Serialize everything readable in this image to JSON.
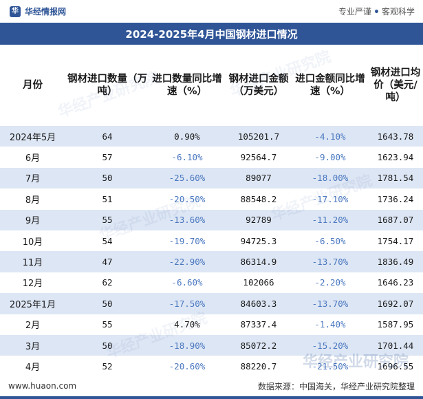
{
  "topbar": {
    "brand": "华经情报网",
    "slogan_left": "专业严谨",
    "slogan_right": "客观科学"
  },
  "title": "2024-2025年4月中国钢材进口情况",
  "columns": [
    "月份",
    "钢材进口数量（万吨）",
    "进口数量同比增速（%）",
    "钢材进口金额（万美元）",
    "进口金额同比增速（%）",
    "钢材进口均价（美元/吨）"
  ],
  "rows": [
    {
      "month": "2024年5月",
      "qty": "64",
      "qty_yoy": "0.90%",
      "amt": "105201.7",
      "amt_yoy": "-4.10%",
      "price": "1643.78"
    },
    {
      "month": "6月",
      "qty": "57",
      "qty_yoy": "-6.10%",
      "amt": "92564.7",
      "amt_yoy": "-9.00%",
      "price": "1623.94"
    },
    {
      "month": "7月",
      "qty": "50",
      "qty_yoy": "-25.60%",
      "amt": "89077",
      "amt_yoy": "-18.00%",
      "price": "1781.54"
    },
    {
      "month": "8月",
      "qty": "51",
      "qty_yoy": "-20.50%",
      "amt": "88548.2",
      "amt_yoy": "-17.10%",
      "price": "1736.24"
    },
    {
      "month": "9月",
      "qty": "55",
      "qty_yoy": "-13.60%",
      "amt": "92789",
      "amt_yoy": "-11.20%",
      "price": "1687.07"
    },
    {
      "month": "10月",
      "qty": "54",
      "qty_yoy": "-19.70%",
      "amt": "94725.3",
      "amt_yoy": "-6.50%",
      "price": "1754.17"
    },
    {
      "month": "11月",
      "qty": "47",
      "qty_yoy": "-22.90%",
      "amt": "86314.9",
      "amt_yoy": "-13.70%",
      "price": "1836.49"
    },
    {
      "month": "12月",
      "qty": "62",
      "qty_yoy": "-6.60%",
      "amt": "102066",
      "amt_yoy": "-2.20%",
      "price": "1646.23"
    },
    {
      "month": "2025年1月",
      "qty": "50",
      "qty_yoy": "-17.50%",
      "amt": "84603.3",
      "amt_yoy": "-13.70%",
      "price": "1692.07"
    },
    {
      "month": "2月",
      "qty": "55",
      "qty_yoy": "4.70%",
      "amt": "87337.4",
      "amt_yoy": "-1.40%",
      "price": "1587.95"
    },
    {
      "month": "3月",
      "qty": "50",
      "qty_yoy": "-18.90%",
      "amt": "85072.2",
      "amt_yoy": "-15.20%",
      "price": "1701.44"
    },
    {
      "month": "4月",
      "qty": "52",
      "qty_yoy": "-20.60%",
      "amt": "88220.7",
      "amt_yoy": "-21.50%",
      "price": "1696.55"
    }
  ],
  "footer": {
    "site": "www.huaon.com",
    "source": "数据来源：中国海关，华经产业研究院整理"
  },
  "watermark": "华经产业研究院",
  "colors": {
    "accent": "#2f5597",
    "row_alt": "#dde6f4",
    "negative": "#4a78c0"
  }
}
